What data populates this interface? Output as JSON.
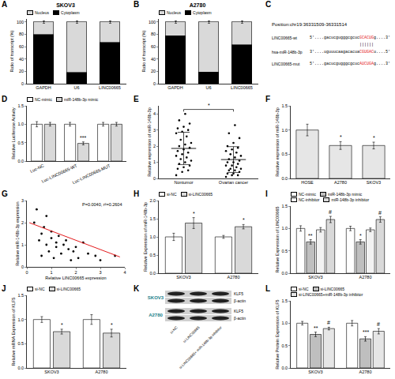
{
  "chart_data": [
    {
      "panel": "A",
      "type": "bar",
      "stacked": true,
      "title": "SKOV3",
      "categories": [
        "GAPDH",
        "U6",
        "LINC00665"
      ],
      "series": [
        {
          "name": "Cytoplasm",
          "color": "#000000",
          "values": [
            80,
            18,
            67
          ]
        },
        {
          "name": "Nucleus",
          "color": "#d9d9d9",
          "values": [
            20,
            82,
            33
          ],
          "errors": [
            2,
            2,
            2
          ]
        }
      ],
      "y_label": "Ratio of transcript (%)",
      "ylim": [
        0,
        105
      ],
      "yticks": [
        0,
        20,
        40,
        60,
        80,
        100
      ],
      "legend": "top"
    },
    {
      "panel": "B",
      "type": "bar",
      "stacked": true,
      "title": "A2780",
      "categories": [
        "GAPDH",
        "U6",
        "LINC00665"
      ],
      "series": [
        {
          "name": "Cytoplasm",
          "color": "#000000",
          "values": [
            78,
            19,
            63
          ]
        },
        {
          "name": "Nucleus",
          "color": "#d9d9d9",
          "values": [
            22,
            81,
            37
          ],
          "errors": [
            2,
            2,
            2
          ]
        }
      ],
      "y_label": "Ratio of transcript (%)",
      "ylim": [
        0,
        105
      ],
      "yticks": [
        0,
        20,
        40,
        60,
        80,
        100
      ],
      "legend": "top"
    },
    {
      "panel": "D",
      "type": "bar",
      "categories": [
        "Luc-NC",
        "Luc-LINC00665-WT",
        "Luc-LINC00665-MUT"
      ],
      "series": [
        {
          "name": "NC-mimic",
          "color": "#ffffff",
          "values": [
            1.0,
            1.0,
            1.0
          ],
          "errors": [
            0.07,
            0.05,
            0.05
          ]
        },
        {
          "name": "miR-148b-3p mimic",
          "color": "#d9d9d9",
          "values": [
            1.0,
            0.48,
            1.0
          ],
          "errors": [
            0.05,
            0.04,
            0.05
          ]
        }
      ],
      "y_label": "Relative Luciferase Activity",
      "ylim": [
        0,
        1.5
      ],
      "yticks": [
        {
          "value": 0,
          "label": "0.0"
        },
        {
          "value": 0.5,
          "label": "0.5"
        },
        {
          "value": 1,
          "label": "1.0"
        },
        {
          "value": 1.5,
          "label": "1.5"
        }
      ],
      "legend": "top",
      "annotations": [
        {
          "category": "Luc-LINC00665-WT",
          "series": "miR-148b-3p mimic",
          "text": "***"
        }
      ]
    },
    {
      "panel": "E",
      "type": "strip",
      "categories": [
        "Nontumor",
        "Ovarian cancer"
      ],
      "values": [
        [
          0.2,
          0.4,
          0.5,
          0.6,
          0.7,
          0.8,
          0.9,
          1.0,
          1.1,
          1.2,
          1.3,
          1.4,
          1.5,
          1.6,
          1.7,
          1.8,
          1.9,
          2.0,
          2.1,
          2.2,
          2.4,
          2.6,
          2.8,
          2.9,
          3.0,
          3.1,
          3.2,
          3.4,
          3.6,
          4.0
        ],
        [
          0.1,
          0.2,
          0.2,
          0.3,
          0.3,
          0.4,
          0.5,
          0.5,
          0.6,
          0.6,
          0.7,
          0.8,
          0.8,
          0.9,
          1.0,
          1.0,
          1.1,
          1.2,
          1.3,
          1.4,
          1.5,
          1.6,
          1.7,
          1.8,
          1.9,
          2.0,
          2.2,
          2.5,
          2.8,
          3.3
        ]
      ],
      "means": [
        1.86,
        1.17
      ],
      "sd": [
        1.0,
        0.8
      ],
      "color": "#000000",
      "y_label": "Relative expression of miR-148b-3p",
      "ylim": [
        0,
        4.5
      ],
      "yticks": [
        0,
        1,
        2,
        3,
        4
      ],
      "annotations": [
        {
          "between": [
            "Nontumor",
            "Ovarian cancer"
          ],
          "text": "*"
        }
      ]
    },
    {
      "panel": "F",
      "type": "bar",
      "categories": [
        "HOSE",
        "A2780",
        "SKOV3"
      ],
      "values": [
        1.0,
        0.68,
        0.68
      ],
      "errors": [
        0.12,
        0.08,
        0.07
      ],
      "color": "#e6e6e6",
      "y_label": "Relative expression of miR-148b-3p",
      "ylim": [
        0,
        1.5
      ],
      "yticks": [
        {
          "value": 0,
          "label": "0.0"
        },
        {
          "value": 0.5,
          "label": "0.5"
        },
        {
          "value": 1,
          "label": "1.0"
        },
        {
          "value": 1.5,
          "label": "1.5"
        }
      ],
      "annotations": [
        {
          "category": "A2780",
          "text": "*"
        },
        {
          "category": "SKOV3",
          "text": "*"
        }
      ]
    },
    {
      "panel": "G",
      "type": "scatter",
      "x": [
        0.3,
        0.4,
        0.5,
        0.6,
        0.6,
        0.7,
        0.8,
        0.8,
        0.9,
        1.0,
        1.0,
        1.1,
        1.2,
        1.2,
        1.3,
        1.4,
        1.5,
        1.6,
        1.7,
        1.8,
        1.9,
        2.0,
        2.1,
        2.3,
        2.5,
        2.8,
        3.0,
        3.6
      ],
      "values": [
        2.0,
        2.6,
        1.2,
        1.5,
        0.5,
        1.8,
        1.0,
        2.3,
        0.7,
        1.3,
        1.6,
        0.4,
        1.1,
        0.9,
        1.4,
        0.6,
        1.0,
        1.2,
        0.8,
        0.3,
        0.7,
        0.9,
        0.4,
        1.1,
        0.6,
        0.5,
        0.3,
        0.5
      ],
      "color": "#000000",
      "trend_line": {
        "x": [
          0.1,
          3.8
        ],
        "y": [
          2.0,
          0.45
        ],
        "color": "#e41a1c"
      },
      "x_label": "Relative LINC00665 expression",
      "y_label": "Relative miR-148b-3p expression",
      "xlim": [
        0,
        4
      ],
      "xticks": [
        0,
        1,
        2,
        3,
        4
      ],
      "ylim": [
        0,
        3
      ],
      "yticks": [
        0,
        1,
        2,
        3
      ],
      "annotations": [
        {
          "text": "P=0.0040, r²=0.2604"
        }
      ]
    },
    {
      "panel": "H",
      "type": "bar",
      "categories": [
        "SKOV3",
        "A2780"
      ],
      "series": [
        {
          "name": "si-NC",
          "color": "#ffffff",
          "values": [
            1.0,
            1.0
          ],
          "errors": [
            0.1,
            0.04
          ]
        },
        {
          "name": "si-LINC00665",
          "color": "#d9d9d9",
          "values": [
            1.38,
            1.28
          ],
          "errors": [
            0.15,
            0.06
          ]
        }
      ],
      "y_label": "Relative Expression of miR-148b-3p",
      "ylim": [
        0,
        2
      ],
      "yticks": [
        {
          "value": 0,
          "label": "0.0"
        },
        {
          "value": 0.5,
          "label": "0.5"
        },
        {
          "value": 1,
          "label": "1.0"
        },
        {
          "value": 1.5,
          "label": "1.5"
        },
        {
          "value": 2,
          "label": "2.0"
        }
      ],
      "legend": "top",
      "annotations": [
        {
          "category": "SKOV3",
          "series": "si-LINC00665",
          "text": "*"
        },
        {
          "category": "A2780",
          "series": "si-LINC00665",
          "text": "*"
        }
      ]
    },
    {
      "panel": "I",
      "type": "bar",
      "categories": [
        "SKOV3",
        "A2780"
      ],
      "series": [
        {
          "name": "NC-mimic",
          "color": "#ffffff",
          "values": [
            1.0,
            1.0
          ],
          "errors": [
            0.06,
            0.05
          ]
        },
        {
          "name": "miR-148b-3p mimic",
          "color": "#bfbfbf",
          "values": [
            0.7,
            0.7
          ],
          "errors": [
            0.05,
            0.05
          ]
        },
        {
          "name": "NC-inhibitor",
          "color": "#f2f2f2",
          "values": [
            0.97,
            0.97
          ],
          "errors": [
            0.05,
            0.04
          ]
        },
        {
          "name": "miR-148b-3p inhibitor",
          "color": "#d9d9d9",
          "values": [
            1.2,
            1.2
          ],
          "errors": [
            0.07,
            0.06
          ]
        }
      ],
      "y_label": "Relative Expression of LINC00665",
      "ylim": [
        0,
        1.5
      ],
      "yticks": [
        {
          "value": 0,
          "label": "0.0"
        },
        {
          "value": 0.5,
          "label": "0.5"
        },
        {
          "value": 1,
          "label": "1.0"
        },
        {
          "value": 1.5,
          "label": "1.5"
        }
      ],
      "legend": "top",
      "annotations": [
        {
          "category": "SKOV3",
          "series": "miR-148b-3p mimic",
          "text": "**"
        },
        {
          "category": "SKOV3",
          "series": "miR-148b-3p inhibitor",
          "text": "#"
        },
        {
          "category": "A2780",
          "series": "miR-148b-3p mimic",
          "text": "*"
        },
        {
          "category": "A2780",
          "series": "miR-148b-3p inhibitor",
          "text": "#"
        }
      ]
    },
    {
      "panel": "J",
      "type": "bar",
      "categories": [
        "SKOV3",
        "A2780"
      ],
      "series": [
        {
          "name": "si-NC",
          "color": "#ffffff",
          "values": [
            1.0,
            1.0
          ],
          "errors": [
            0.06,
            0.1
          ]
        },
        {
          "name": "si-LINC00665",
          "color": "#d9d9d9",
          "values": [
            0.75,
            0.72
          ],
          "errors": [
            0.05,
            0.08
          ]
        }
      ],
      "y_label": "Relative mRNA Expression of KLF5",
      "ylim": [
        0,
        1.5
      ],
      "yticks": [
        {
          "value": 0,
          "label": "0.0"
        },
        {
          "value": 0.5,
          "label": "0.5"
        },
        {
          "value": 1,
          "label": "1.0"
        },
        {
          "value": 1.5,
          "label": "1.5"
        }
      ],
      "legend": "top",
      "annotations": [
        {
          "category": "SKOV3",
          "series": "si-LINC00665",
          "text": "*"
        },
        {
          "category": "A2780",
          "series": "si-LINC00665",
          "text": "*"
        }
      ]
    },
    {
      "panel": "L",
      "type": "bar",
      "categories": [
        "SKOV3",
        "A2780"
      ],
      "series": [
        {
          "name": "si-NC",
          "color": "#ffffff",
          "values": [
            1.0,
            1.0
          ],
          "errors": [
            0.04,
            0.06
          ]
        },
        {
          "name": "si-LINC00665",
          "color": "#bfbfbf",
          "values": [
            0.75,
            0.65
          ],
          "errors": [
            0.05,
            0.05
          ]
        },
        {
          "name": "si-LINC00665+miR-148b-3p inhibitor",
          "color": "#e6e6e6",
          "values": [
            0.88,
            0.82
          ],
          "errors": [
            0.03,
            0.06
          ]
        }
      ],
      "y_label": "Relative Protein Expression of KLF5",
      "ylim": [
        0,
        1.5
      ],
      "yticks": [
        {
          "value": 0,
          "label": "0.0"
        },
        {
          "value": 0.5,
          "label": "0.5"
        },
        {
          "value": 1,
          "label": "1.0"
        },
        {
          "value": 1.5,
          "label": "1.5"
        }
      ],
      "legend": "top",
      "annotations": [
        {
          "category": "SKOV3",
          "series": "si-LINC00665",
          "text": "**"
        },
        {
          "category": "SKOV3",
          "series": "si-LINC00665+miR-148b-3p inhibitor",
          "text": "#"
        },
        {
          "category": "A2780",
          "series": "si-LINC00665",
          "text": "***"
        },
        {
          "category": "A2780",
          "series": "si-LINC00665+miR-148b-3p inhibitor",
          "text": "#"
        }
      ]
    }
  ],
  "diagrams": [
    {
      "panel": "C",
      "type": "sequence",
      "header": "Position:chr19:36331509-36331514",
      "color": "#e41a1c",
      "rows": [
        {
          "name": "LINC00665-wt",
          "left": "5'....gacucgugggcgcuc",
          "site": "GCACUG",
          "right": "g....3'"
        },
        {
          "pairing": "||||||"
        },
        {
          "name": "hsa-miR-148b-3p",
          "left": "3'....uguuucaagacacua",
          "site": "CGUGAC",
          "right": "u....5'"
        },
        {
          "name": "LINC00665-mut",
          "left": "5'....gacucgugggcgcuc",
          "site": "AUCUGA",
          "right": "g....3'"
        }
      ]
    },
    {
      "panel": "K",
      "type": "blot",
      "color": "#1b7f8a",
      "blocks": [
        {
          "cell_line": "SKOV3",
          "bands": [
            "KLF5",
            "β-actin"
          ]
        },
        {
          "cell_line": "A2780",
          "bands": [
            "KLF5",
            "β-actin"
          ]
        }
      ],
      "lanes": [
        "si-NC",
        "si-LINC00665",
        "si-LINC00665+ miR-148b-3p inhibitor"
      ]
    }
  ]
}
